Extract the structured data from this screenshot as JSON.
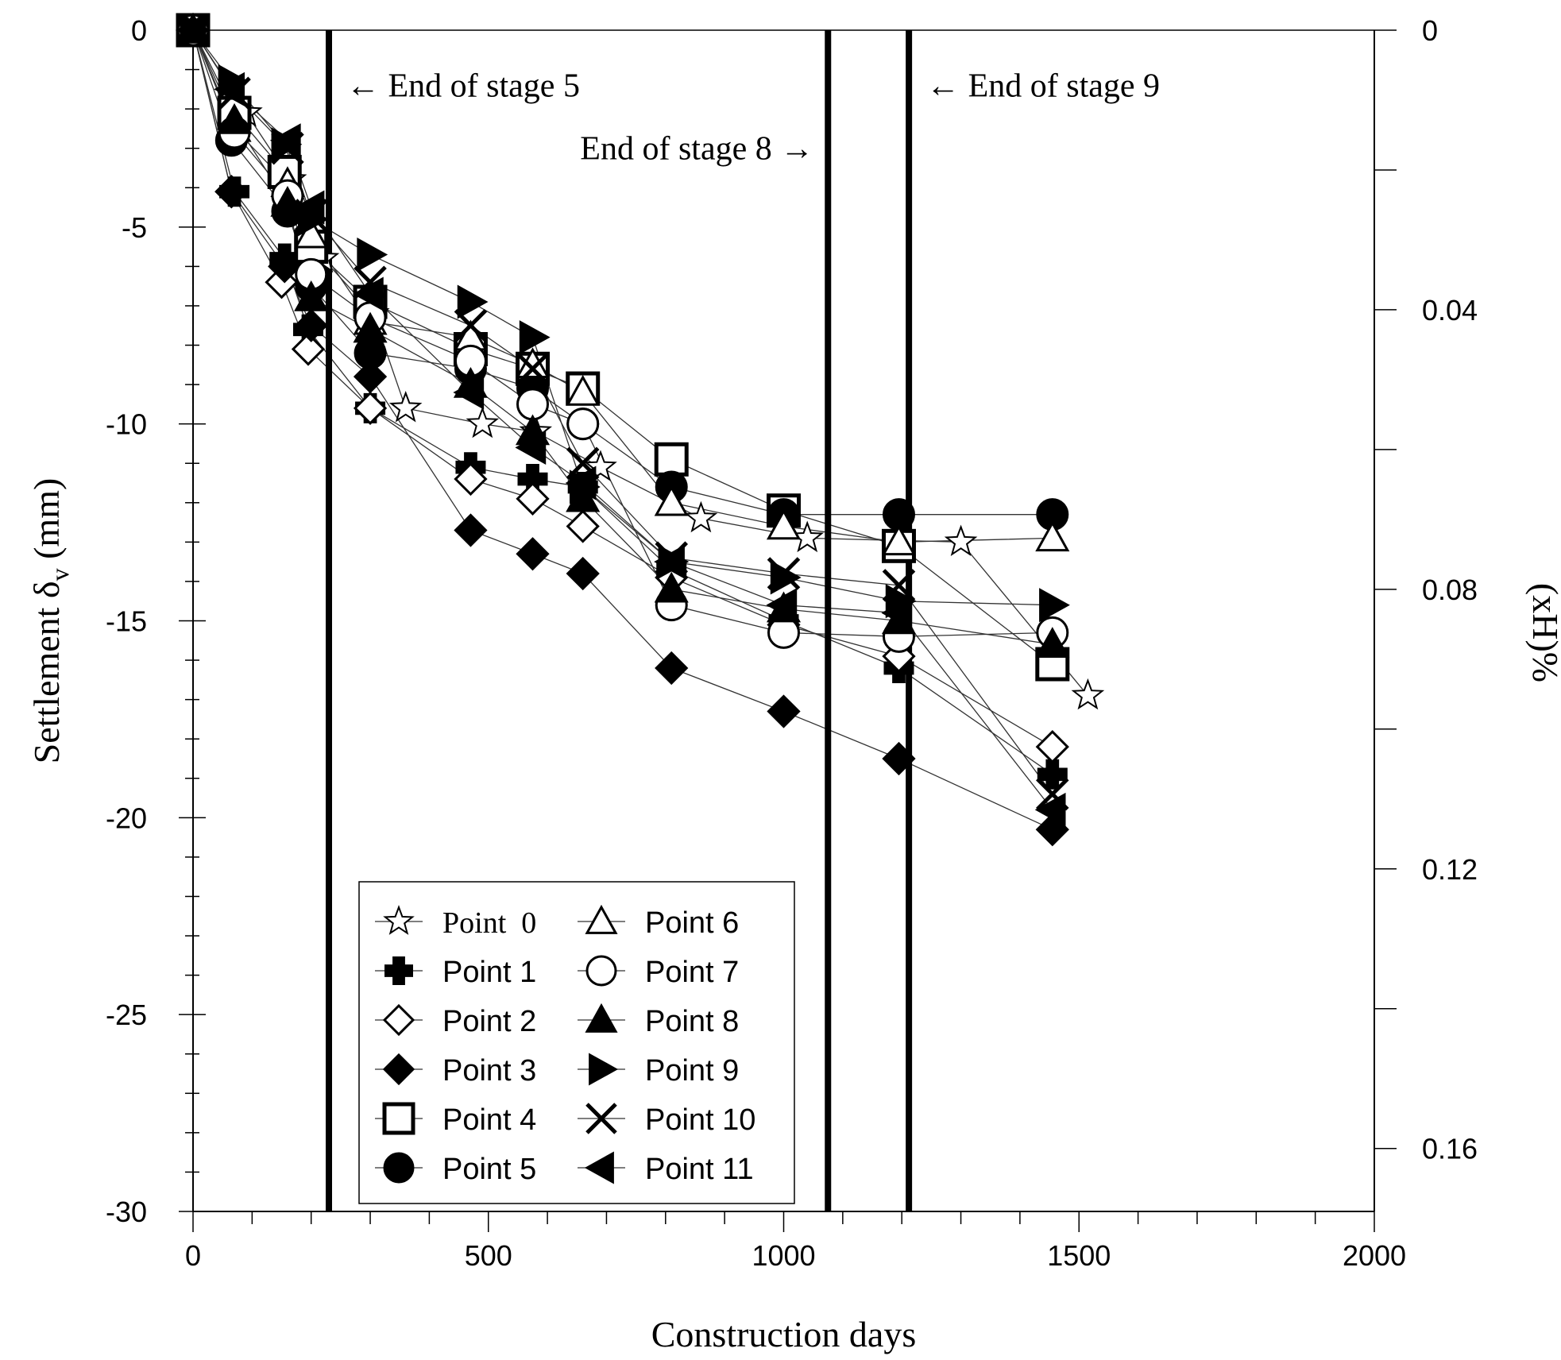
{
  "chart_data": {
    "type": "line",
    "title": "",
    "xlabel": "Construction days",
    "ylabel": "Settlement δ",
    "ylabel_subscript": "v",
    "ylabel_unit": " (mm)",
    "y2label": "(xH)%",
    "xlim": [
      0,
      2000
    ],
    "ylim": [
      -30,
      0
    ],
    "x_ticks": [
      "0",
      "500",
      "1000",
      "1500",
      "2000"
    ],
    "y_ticks": [
      "0",
      "-5",
      "-10",
      "-15",
      "-20",
      "-25",
      "-30"
    ],
    "y2_ticks": [
      "0",
      "0.04",
      "0.08",
      "0.12",
      "0.16"
    ],
    "y2_tick_settlement_values": [
      0,
      -7.1,
      -14.2,
      -21.3,
      -28.4
    ],
    "grid": false,
    "legend_position": "bottom-left",
    "stage_lines": [
      {
        "x": 230,
        "label": "← End of stage 5",
        "label_side": "right",
        "label_y": -1.4
      },
      {
        "x": 1075,
        "label": "End of stage 8 →",
        "label_side": "left",
        "label_y": -3.0
      },
      {
        "x": 1212,
        "label": "← End of stage 9",
        "label_side": "right",
        "label_y": -1.4
      }
    ],
    "series": [
      {
        "name": "Point  0",
        "marker": "star-open",
        "x": [
          0,
          90,
          165,
          220,
          305,
          360,
          490,
          580,
          690,
          860,
          1040,
          1300,
          1515
        ],
        "y": [
          0,
          -2.1,
          -3.8,
          -5.8,
          -7.2,
          -9.6,
          -10.0,
          -10.2,
          -11.1,
          -12.4,
          -12.9,
          -13.0,
          -16.9
        ]
      },
      {
        "name": "Point 1",
        "marker": "plus",
        "x": [
          0,
          70,
          155,
          195,
          300,
          470,
          575,
          660,
          810,
          1000,
          1195,
          1455
        ],
        "y": [
          0,
          -4.1,
          -5.8,
          -7.6,
          -9.6,
          -11.1,
          -11.4,
          -11.6,
          -13.7,
          -15.0,
          -16.2,
          -18.9
        ]
      },
      {
        "name": "Point 2",
        "marker": "diamond-open",
        "x": [
          0,
          65,
          150,
          195,
          300,
          470,
          575,
          660,
          810,
          1000,
          1195,
          1455
        ],
        "y": [
          0,
          -4.1,
          -6.4,
          -8.1,
          -9.6,
          -11.4,
          -11.9,
          -12.6,
          -13.9,
          -15.1,
          -15.9,
          -18.2
        ]
      },
      {
        "name": "Point 3",
        "marker": "diamond",
        "x": [
          0,
          65,
          155,
          200,
          300,
          470,
          575,
          660,
          810,
          1000,
          1195,
          1455
        ],
        "y": [
          0,
          -4.1,
          -6.0,
          -7.5,
          -8.8,
          -12.7,
          -13.3,
          -13.8,
          -16.2,
          -17.3,
          -18.5,
          -20.3
        ]
      },
      {
        "name": "Point 4",
        "marker": "square-open",
        "x": [
          0,
          70,
          155,
          200,
          300,
          470,
          575,
          660,
          810,
          1000,
          1195,
          1455
        ],
        "y": [
          0,
          -2.1,
          -3.6,
          -5.5,
          -6.9,
          -8.1,
          -8.6,
          -9.1,
          -10.9,
          -12.2,
          -13.1,
          -16.1
        ]
      },
      {
        "name": "Point 5",
        "marker": "circle",
        "x": [
          0,
          65,
          160,
          200,
          300,
          470,
          575,
          660,
          810,
          1000,
          1195,
          1455
        ],
        "y": [
          0,
          -2.8,
          -4.6,
          -6.5,
          -8.2,
          -8.6,
          -9.1,
          -10.0,
          -11.6,
          -12.3,
          -12.3,
          -12.3
        ]
      },
      {
        "name": "Point 6",
        "marker": "triangle-open",
        "x": [
          0,
          70,
          160,
          200,
          300,
          470,
          575,
          660,
          810,
          1000,
          1195,
          1455
        ],
        "y": [
          0,
          -2.5,
          -3.9,
          -5.2,
          -7.4,
          -7.8,
          -8.5,
          -9.2,
          -12.0,
          -12.6,
          -13.0,
          -12.9
        ]
      },
      {
        "name": "Point 7",
        "marker": "circle-open",
        "x": [
          0,
          70,
          160,
          200,
          300,
          470,
          575,
          660,
          810,
          1000,
          1195,
          1455
        ],
        "y": [
          0,
          -2.6,
          -4.2,
          -6.2,
          -7.3,
          -8.4,
          -9.5,
          -10.0,
          -14.6,
          -15.3,
          -15.4,
          -15.3
        ]
      },
      {
        "name": "Point 8",
        "marker": "triangle",
        "x": [
          0,
          70,
          160,
          200,
          300,
          470,
          575,
          660,
          810,
          1000,
          1195,
          1455
        ],
        "y": [
          0,
          -2.3,
          -4.4,
          -6.8,
          -7.6,
          -9.0,
          -10.2,
          -11.9,
          -14.2,
          -14.7,
          -15.0,
          -15.6
        ]
      },
      {
        "name": "Point 9",
        "marker": "triangle-right",
        "x": [
          0,
          65,
          155,
          200,
          300,
          470,
          575,
          660,
          810,
          1000,
          1195,
          1455
        ],
        "y": [
          0,
          -1.3,
          -2.9,
          -4.8,
          -5.7,
          -6.9,
          -7.8,
          -11.6,
          -13.5,
          -13.9,
          -14.5,
          -14.6
        ]
      },
      {
        "name": "Point 10",
        "marker": "cross",
        "x": [
          0,
          70,
          160,
          200,
          300,
          470,
          575,
          660,
          810,
          1000,
          1195,
          1455
        ],
        "y": [
          0,
          -1.6,
          -3.0,
          -4.7,
          -6.4,
          -7.5,
          -8.6,
          -11.0,
          -13.4,
          -13.8,
          -14.1,
          -19.4
        ]
      },
      {
        "name": "Point 11",
        "marker": "triangle-left",
        "x": [
          0,
          65,
          160,
          200,
          300,
          470,
          575,
          660,
          810,
          1000,
          1195,
          1455
        ],
        "y": [
          0,
          -1.5,
          -2.8,
          -4.5,
          -6.7,
          -9.2,
          -10.6,
          -11.5,
          -13.5,
          -14.6,
          -14.8,
          -19.8
        ]
      }
    ]
  }
}
